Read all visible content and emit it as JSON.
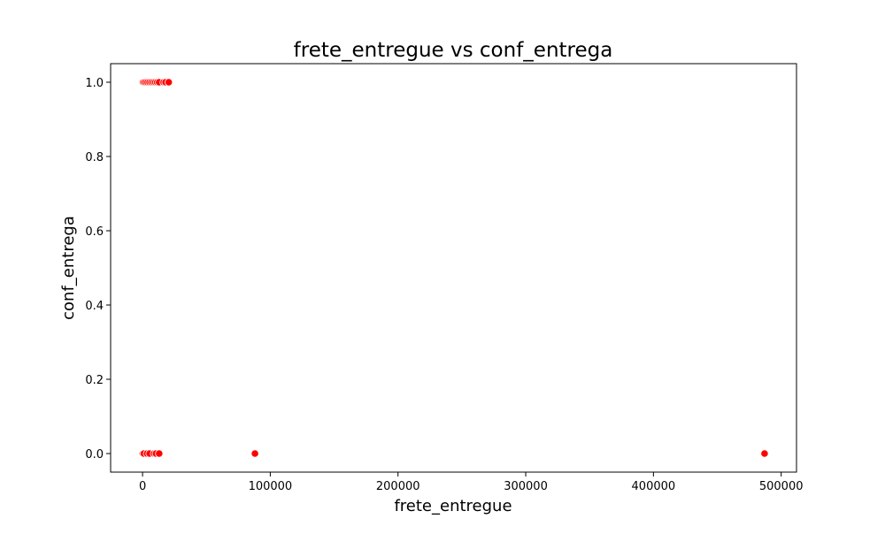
{
  "chart_data": {
    "type": "scatter",
    "title": "frete_entregue vs conf_entrega",
    "xlabel": "frete_entregue",
    "ylabel": "conf_entrega",
    "xlim": [
      -25000,
      512000
    ],
    "ylim": [
      -0.05,
      1.05
    ],
    "xticks": [
      0,
      100000,
      200000,
      300000,
      400000,
      500000
    ],
    "xtick_labels": [
      "0",
      "100000",
      "200000",
      "300000",
      "400000",
      "500000"
    ],
    "yticks": [
      0.0,
      0.2,
      0.4,
      0.6,
      0.8,
      1.0
    ],
    "ytick_labels": [
      "0.0",
      "0.2",
      "0.4",
      "0.6",
      "0.8",
      "1.0"
    ],
    "grid": false,
    "marker_color": "#ff0000",
    "marker_edge_color": "#ffffff",
    "series": [
      {
        "points": [
          {
            "x": 300,
            "y": 1
          },
          {
            "x": 1200,
            "y": 1
          },
          {
            "x": 2500,
            "y": 1
          },
          {
            "x": 4000,
            "y": 1
          },
          {
            "x": 5500,
            "y": 1
          },
          {
            "x": 7000,
            "y": 1
          },
          {
            "x": 8500,
            "y": 1
          },
          {
            "x": 10000,
            "y": 1
          },
          {
            "x": 11500,
            "y": 1
          },
          {
            "x": 13000,
            "y": 1
          },
          {
            "x": 16500,
            "y": 1
          },
          {
            "x": 18000,
            "y": 1
          },
          {
            "x": 20500,
            "y": 1
          },
          {
            "x": 200,
            "y": 0
          },
          {
            "x": 1000,
            "y": 0
          },
          {
            "x": 3500,
            "y": 0
          },
          {
            "x": 5500,
            "y": 0
          },
          {
            "x": 9000,
            "y": 0
          },
          {
            "x": 10500,
            "y": 0
          },
          {
            "x": 13000,
            "y": 0
          },
          {
            "x": 88000,
            "y": 0
          },
          {
            "x": 487000,
            "y": 0
          }
        ]
      }
    ]
  }
}
